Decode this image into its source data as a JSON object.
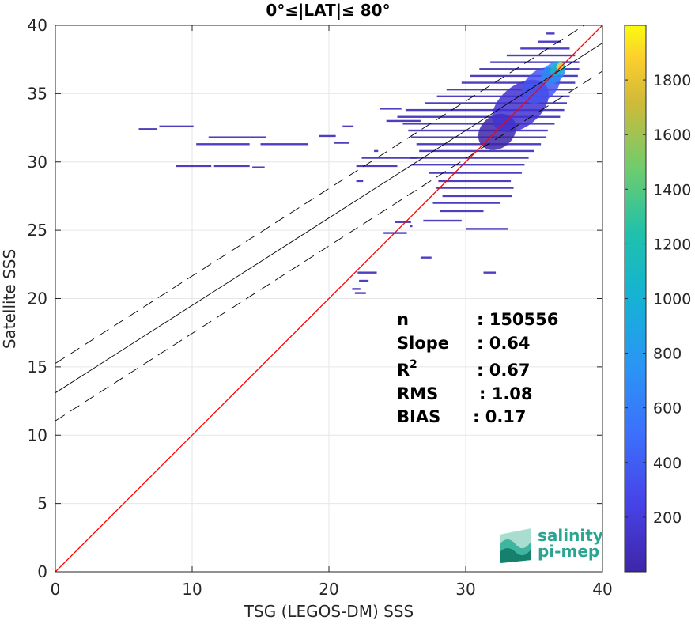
{
  "chart_data": {
    "type": "scatter",
    "title": "0°≤|LAT|≤ 80°",
    "xlabel": "TSG (LEGOS-DM) SSS",
    "ylabel": "Satellite SSS",
    "xlim": [
      0,
      40
    ],
    "ylim": [
      0,
      40
    ],
    "xticks": [
      "0",
      "10",
      "20",
      "30",
      "40"
    ],
    "yticks": [
      "0",
      "5",
      "10",
      "15",
      "20",
      "25",
      "30",
      "35",
      "40"
    ],
    "grid": true,
    "colorbar": {
      "range": [
        0,
        2000
      ],
      "ticks": [
        "200",
        "400",
        "600",
        "800",
        "1000",
        "1200",
        "1400",
        "1600",
        "1800"
      ],
      "tick_values": [
        200,
        400,
        600,
        800,
        1000,
        1200,
        1400,
        1600,
        1800
      ]
    },
    "lines": {
      "identity": {
        "x": [
          0,
          40
        ],
        "y": [
          0,
          40
        ],
        "color": "#ff0000"
      },
      "fit": {
        "x": [
          0,
          40
        ],
        "y": [
          13.1,
          38.7
        ],
        "color": "#000000"
      },
      "fit_upper": {
        "x": [
          0,
          40
        ],
        "y": [
          15.25,
          40.85
        ],
        "color": "#000000",
        "style": "dashed"
      },
      "fit_lower": {
        "x": [
          0,
          40
        ],
        "y": [
          11.05,
          36.65
        ],
        "color": "#000000",
        "style": "dashed"
      }
    },
    "stats": [
      {
        "label": "n",
        "value": ": 150556"
      },
      {
        "label": "Slope",
        "value": ": 0.64"
      },
      {
        "label": "R",
        "sup": "2",
        "value": ": 0.67"
      },
      {
        "label": "RMS",
        "value": ": 1.08"
      },
      {
        "label": "BIAS",
        "value": ": 0.17"
      }
    ],
    "density_rows": [
      {
        "y": 32.4,
        "x0": 6.1,
        "x1": 7.4
      },
      {
        "y": 32.6,
        "x0": 7.6,
        "x1": 10.1
      },
      {
        "y": 31.3,
        "x0": 10.3,
        "x1": 14.2
      },
      {
        "y": 31.8,
        "x0": 11.2,
        "x1": 15.4
      },
      {
        "y": 31.3,
        "x0": 15.0,
        "x1": 18.5
      },
      {
        "y": 29.7,
        "x0": 8.8,
        "x1": 11.4
      },
      {
        "y": 29.7,
        "x0": 11.6,
        "x1": 14.2
      },
      {
        "y": 29.6,
        "x0": 14.4,
        "x1": 15.3
      },
      {
        "y": 31.9,
        "x0": 19.3,
        "x1": 20.5
      },
      {
        "y": 31.4,
        "x0": 20.4,
        "x1": 21.5
      },
      {
        "y": 32.6,
        "x0": 21.0,
        "x1": 21.8
      },
      {
        "y": 30.8,
        "x0": 23.3,
        "x1": 23.6
      },
      {
        "y": 33.9,
        "x0": 23.7,
        "x1": 25.3
      },
      {
        "y": 33.0,
        "x0": 24.2,
        "x1": 26.7
      },
      {
        "y": 30.3,
        "x0": 22.4,
        "x1": 26.5
      },
      {
        "y": 29.7,
        "x0": 22.0,
        "x1": 25.0
      },
      {
        "y": 28.6,
        "x0": 22.0,
        "x1": 22.5
      },
      {
        "y": 24.8,
        "x0": 24.0,
        "x1": 25.7
      },
      {
        "y": 25.6,
        "x0": 24.8,
        "x1": 26.0
      },
      {
        "y": 25.3,
        "x0": 25.9,
        "x1": 26.1
      },
      {
        "y": 23.0,
        "x0": 26.7,
        "x1": 27.5
      },
      {
        "y": 21.9,
        "x0": 22.1,
        "x1": 23.5
      },
      {
        "y": 21.3,
        "x0": 22.2,
        "x1": 22.9
      },
      {
        "y": 20.7,
        "x0": 21.7,
        "x1": 22.3
      },
      {
        "y": 20.4,
        "x0": 21.9,
        "x1": 22.7
      },
      {
        "y": 21.9,
        "x0": 31.3,
        "x1": 32.2
      },
      {
        "y": 25.1,
        "x0": 30.0,
        "x1": 33.1
      },
      {
        "y": 25.7,
        "x0": 26.9,
        "x1": 29.7
      },
      {
        "y": 26.4,
        "x0": 28.1,
        "x1": 31.3
      },
      {
        "y": 27.0,
        "x0": 27.6,
        "x1": 32.5
      },
      {
        "y": 27.5,
        "x0": 28.3,
        "x1": 33.4
      },
      {
        "y": 28.1,
        "x0": 27.8,
        "x1": 33.5
      },
      {
        "y": 28.6,
        "x0": 28.0,
        "x1": 33.3
      },
      {
        "y": 29.2,
        "x0": 27.3,
        "x1": 34.1
      },
      {
        "y": 29.8,
        "x0": 26.0,
        "x1": 34.3
      },
      {
        "y": 30.3,
        "x0": 25.9,
        "x1": 34.6
      },
      {
        "y": 30.8,
        "x0": 26.6,
        "x1": 35.0
      },
      {
        "y": 31.3,
        "x0": 26.4,
        "x1": 35.5
      },
      {
        "y": 31.8,
        "x0": 26.0,
        "x1": 35.9
      },
      {
        "y": 32.3,
        "x0": 25.8,
        "x1": 36.0
      },
      {
        "y": 32.8,
        "x0": 25.4,
        "x1": 36.5
      },
      {
        "y": 33.3,
        "x0": 25.0,
        "x1": 36.9
      },
      {
        "y": 33.8,
        "x0": 25.6,
        "x1": 37.2
      },
      {
        "y": 34.3,
        "x0": 27.0,
        "x1": 37.4
      },
      {
        "y": 34.8,
        "x0": 27.9,
        "x1": 37.6
      },
      {
        "y": 35.3,
        "x0": 28.6,
        "x1": 37.8
      },
      {
        "y": 35.8,
        "x0": 29.7,
        "x1": 38.0
      },
      {
        "y": 36.3,
        "x0": 30.3,
        "x1": 38.2
      },
      {
        "y": 36.8,
        "x0": 31.0,
        "x1": 38.3
      },
      {
        "y": 37.3,
        "x0": 31.8,
        "x1": 38.3
      },
      {
        "y": 37.8,
        "x0": 33.0,
        "x1": 38.0
      },
      {
        "y": 38.3,
        "x0": 34.0,
        "x1": 37.6
      },
      {
        "y": 38.8,
        "x0": 35.3,
        "x1": 37.0
      },
      {
        "y": 39.4,
        "x0": 35.9,
        "x1": 36.5
      }
    ],
    "density_core": [
      {
        "x": 32.3,
        "y": 32.2,
        "rx": 1.5,
        "ry": 1.2,
        "count": 180
      },
      {
        "x": 34.0,
        "y": 34.1,
        "rx": 2.4,
        "ry": 1.5,
        "count": 250
      },
      {
        "x": 35.5,
        "y": 35.6,
        "rx": 1.6,
        "ry": 1.1,
        "count": 400
      },
      {
        "x": 36.4,
        "y": 36.5,
        "rx": 1.0,
        "ry": 0.7,
        "count": 700
      },
      {
        "x": 36.7,
        "y": 36.8,
        "rx": 0.6,
        "ry": 0.4,
        "count": 1100
      },
      {
        "x": 36.9,
        "y": 37.0,
        "rx": 0.3,
        "ry": 0.25,
        "count": 1800
      }
    ]
  },
  "logo": {
    "line1": "salinity",
    "line2": "pi-mep"
  }
}
